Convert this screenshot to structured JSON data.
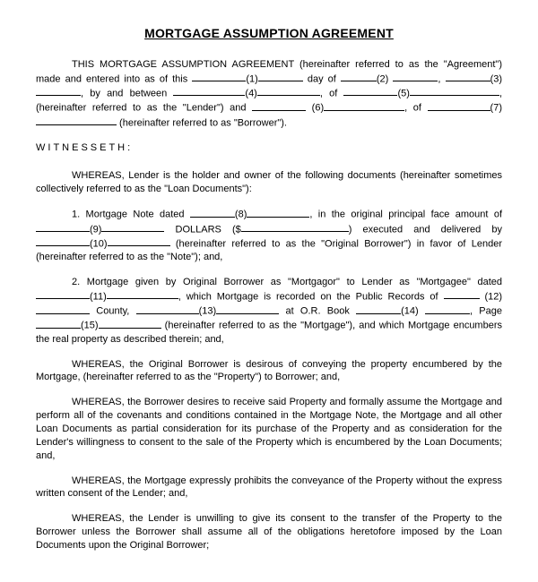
{
  "title": "MORTGAGE ASSUMPTION AGREEMENT",
  "intro": {
    "t1": "THIS MORTGAGE ASSUMPTION AGREEMENT (hereinafter referred to as the \"Agreement\") made and entered into as of this ",
    "f1": "(1)",
    "t2": " day of ",
    "f2": "(2)",
    "t3": ", ",
    "f3": "(3)",
    "t4": ", by and between ",
    "f4": "(4)",
    "t5": ", of ",
    "f5": "(5)",
    "t6": ", (hereinafter referred to as the \"Lender\") and ",
    "f6": "(6)",
    "t7": ", of ",
    "f7": "(7)",
    "t8": " (hereinafter referred to as \"Borrower\")."
  },
  "witnesseth": "WITNESSETH:",
  "whereas1": "WHEREAS, Lender is the holder and owner of the following documents (hereinafter sometimes collectively referred to as the \"Loan Documents\"):",
  "item1": {
    "t1": "1. Mortgage Note dated ",
    "f8": "(8)",
    "t2": ", in the original principal face amount of ",
    "f9": "(9)",
    "t3": " DOLLARS ($",
    "t4": ") executed and delivered by ",
    "f10": "(10)",
    "t5": " (hereinafter referred to as the \"Original Borrower\") in favor of Lender (hereinafter referred to as the \"Note\"); and,"
  },
  "item2": {
    "t1": "2. Mortgage given by Original Borrower as \"Mortgagor\" to Lender as \"Mortgagee\" dated ",
    "f11": "(11)",
    "t2": ", which Mortgage is recorded on the Public Records of ",
    "f12": "(12)",
    "t3": " County, ",
    "f13": "(13)",
    "t4": " at O.R. Book ",
    "f14": "(14)",
    "t5": ", Page ",
    "f15": "(15)",
    "t6": " (hereinafter referred to as the \"Mortgage\"), and which Mortgage encumbers the real property as described therein; and,"
  },
  "whereas2": "WHEREAS, the Original Borrower is desirous of conveying the property encumbered by the Mortgage, (hereinafter referred to as the \"Property\") to Borrower; and,",
  "whereas3": "WHEREAS, the Borrower desires to receive said Property and formally assume the Mortgage and perform all of the covenants and conditions contained in the Mortgage Note, the Mortgage and all other Loan Documents as partial consideration for its purchase of the Property and as consideration for the Lender's willingness to consent to the sale of the Property which is encumbered by the Loan Documents; and,",
  "whereas4": "WHEREAS, the Mortgage expressly prohibits the conveyance of the Property without the express written consent of the Lender; and,",
  "whereas5": "WHEREAS, the Lender is unwilling to give its consent to the transfer of the Property to the Borrower unless the Borrower shall assume all of the obligations heretofore imposed by the Loan Documents upon the Original Borrower;"
}
